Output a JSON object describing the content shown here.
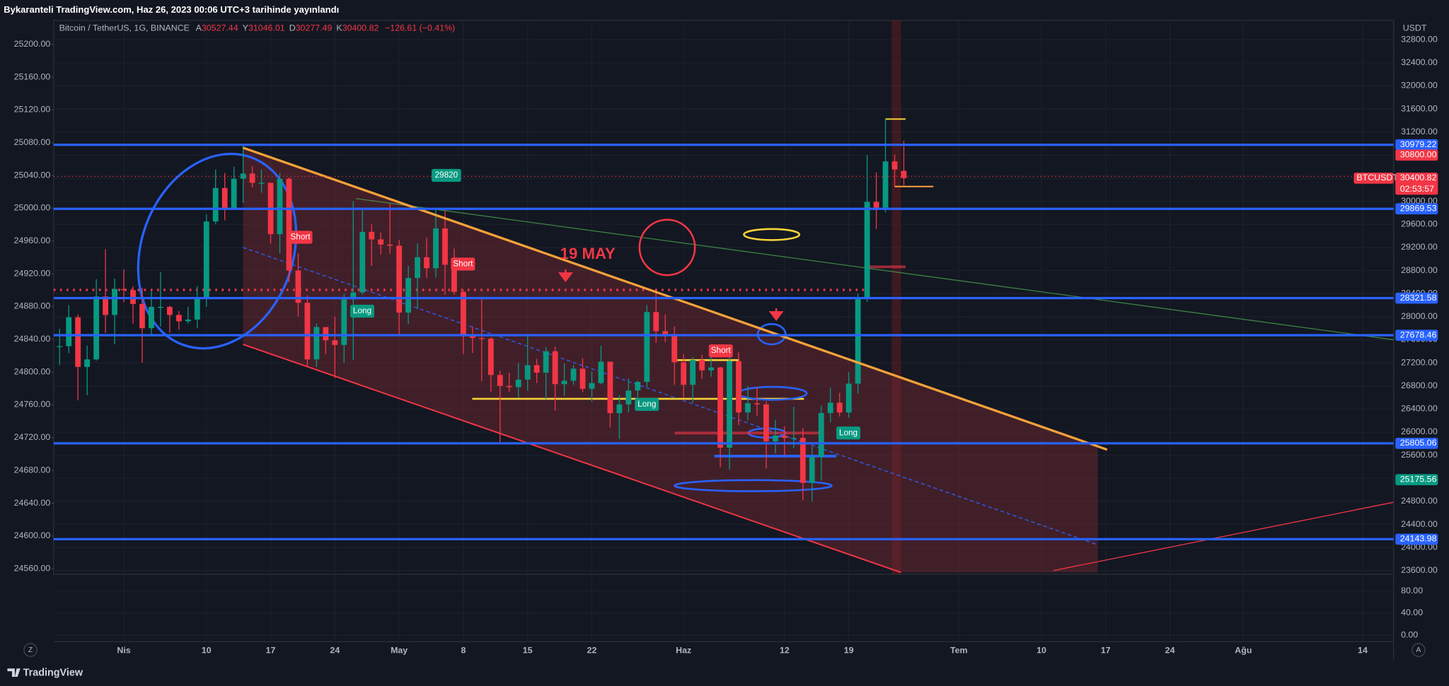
{
  "header": "Bykaranteli TradingView.com, Haz 26, 2023 00:06 UTC+3 tarihinde yayınlandı",
  "footer": "TradingView",
  "chart_data": {
    "type": "candlestick",
    "symbol": "Bitcoin / TetherUS, 1G, BINANCE",
    "ohlc_letters": [
      "A",
      "Y",
      "D",
      "K"
    ],
    "change": "−126.61 (−0.41%)",
    "currency": "USDT",
    "ticker": "BTCUSDT",
    "countdown": "02:53:57",
    "up_color": "#089981",
    "down_color": "#f23645",
    "open": [
      27480,
      27490,
      27990,
      27130,
      27260,
      28350,
      28030,
      28480,
      28460,
      28220,
      27800,
      28170,
      28170,
      28030,
      27920,
      27950,
      28330,
      29650,
      30230,
      29880,
      30390,
      30480,
      30320,
      30320,
      29430,
      30390,
      28800,
      28240,
      27260,
      27820,
      27590,
      27510,
      28300,
      28420,
      29470,
      29340,
      29250,
      29230,
      28070,
      28670,
      29030,
      28840,
      29530,
      28900,
      28430,
      27670,
      27630,
      27620,
      26990,
      26800,
      26780,
      26910,
      27160,
      27030,
      27400,
      26830,
      26890,
      27100,
      26750,
      26850,
      27220,
      26330,
      26480,
      26720,
      26870,
      28080,
      27750,
      27700,
      27210,
      26820,
      27250,
      27070,
      27120,
      25730,
      27230,
      26340,
      26500,
      26480,
      25840,
      25940,
      25900,
      25900,
      25120,
      25570,
      26330,
      26510,
      26340,
      26840,
      28310,
      29990,
      29890,
      30690,
      30527.44
    ],
    "high": [
      27790,
      28200,
      28040,
      27500,
      28650,
      29170,
      28660,
      28820,
      28530,
      28500,
      28440,
      28770,
      28190,
      28100,
      28170,
      28530,
      29770,
      30550,
      30490,
      30600,
      31000,
      30610,
      30550,
      30320,
      30490,
      30410,
      29100,
      28370,
      27880,
      27820,
      28000,
      28400,
      30000,
      29890,
      29600,
      29460,
      29960,
      29330,
      28880,
      29270,
      29370,
      29850,
      29830,
      29180,
      28460,
      27830,
      28320,
      27640,
      27060,
      27030,
      27200,
      27660,
      27270,
      27470,
      27480,
      27190,
      27160,
      27280,
      27050,
      27500,
      27220,
      26640,
      26930,
      26890,
      28200,
      28450,
      28040,
      27830,
      27350,
      27300,
      27340,
      27450,
      27130,
      27350,
      27380,
      26800,
      26780,
      26530,
      26210,
      26100,
      26440,
      26070,
      25750,
      26460,
      26770,
      26680,
      27040,
      28400,
      30800,
      30500,
      31430,
      30810,
      31046.01
    ],
    "low": [
      27160,
      27370,
      26550,
      26640,
      27240,
      27720,
      27520,
      28250,
      27880,
      27200,
      27680,
      27830,
      27720,
      27770,
      27880,
      27800,
      28170,
      29600,
      29670,
      29870,
      29970,
      30240,
      30150,
      29270,
      29100,
      28600,
      28000,
      27140,
      27130,
      27350,
      26940,
      27200,
      27250,
      28380,
      28880,
      29080,
      29090,
      27680,
      27870,
      28130,
      28670,
      28680,
      28380,
      28380,
      27350,
      27370,
      26880,
      26700,
      25810,
      26700,
      26600,
      26720,
      26850,
      26570,
      26370,
      26630,
      26820,
      26690,
      26530,
      26830,
      26080,
      25880,
      26340,
      26560,
      26780,
      27550,
      27560,
      26820,
      26600,
      26510,
      26920,
      26960,
      25390,
      25350,
      26120,
      26200,
      26280,
      25370,
      25630,
      25600,
      25720,
      24820,
      24800,
      25160,
      26170,
      26270,
      26250,
      26670,
      28260,
      29520,
      29810,
      30250,
      30277.49
    ],
    "close": [
      27490,
      27990,
      27130,
      27260,
      28350,
      28030,
      28480,
      28460,
      28220,
      27800,
      28170,
      28170,
      28030,
      27920,
      27950,
      28330,
      29650,
      30230,
      29880,
      30390,
      30480,
      30320,
      30320,
      29430,
      30390,
      28800,
      28240,
      27260,
      27820,
      27590,
      27510,
      28300,
      28420,
      29470,
      29340,
      29250,
      29230,
      28070,
      28670,
      29030,
      28840,
      29530,
      28900,
      28430,
      27670,
      27630,
      27620,
      26990,
      26800,
      26780,
      26910,
      27160,
      27030,
      27400,
      26830,
      26890,
      27100,
      26750,
      26850,
      27220,
      26330,
      26480,
      26720,
      26870,
      28080,
      27750,
      27700,
      27210,
      26820,
      27250,
      27070,
      27120,
      25730,
      27230,
      26340,
      26500,
      26480,
      25840,
      25940,
      25900,
      25900,
      25120,
      25570,
      26330,
      26510,
      26340,
      26840,
      28310,
      29990,
      29890,
      30690,
      30550,
      30400.82
    ],
    "xticks": [
      {
        "value": 7,
        "label": "Nis"
      },
      {
        "value": 16,
        "label": "10"
      },
      {
        "value": 23,
        "label": "17"
      },
      {
        "value": 30,
        "label": "24"
      },
      {
        "value": 37,
        "label": "May"
      },
      {
        "value": 44,
        "label": "8"
      },
      {
        "value": 51,
        "label": "15"
      },
      {
        "value": 58,
        "label": "22"
      },
      {
        "value": 68,
        "label": "Haz"
      },
      {
        "value": 79,
        "label": "12"
      },
      {
        "value": 86,
        "label": "19"
      },
      {
        "value": 98,
        "label": "Tem"
      },
      {
        "value": 107,
        "label": "10"
      },
      {
        "value": 114,
        "label": "17"
      },
      {
        "value": 121,
        "label": "24"
      },
      {
        "value": 129,
        "label": "Ağu"
      },
      {
        "value": 142,
        "label": "14"
      }
    ],
    "ylim": [
      23600,
      32800
    ],
    "yticks": [
      {
        "value": 32800,
        "label": "32800.00"
      },
      {
        "value": 32400,
        "label": "32400.00"
      },
      {
        "value": 32000,
        "label": "32000.00"
      },
      {
        "value": 31600,
        "label": "31600.00"
      },
      {
        "value": 31200,
        "label": "31200.00"
      },
      {
        "value": 30800,
        "label": "30800.00"
      },
      {
        "value": 30400,
        "label": "30400.00"
      },
      {
        "value": 30000,
        "label": "30000.00"
      },
      {
        "value": 29600,
        "label": "29600.00"
      },
      {
        "value": 29200,
        "label": "29200.00"
      },
      {
        "value": 28800,
        "label": "28800.00"
      },
      {
        "value": 28400,
        "label": "28400.00"
      },
      {
        "value": 28000,
        "label": "28000.00"
      },
      {
        "value": 27600,
        "label": "27600.00"
      },
      {
        "value": 27200,
        "label": "27200.00"
      },
      {
        "value": 26800,
        "label": "26800.00"
      },
      {
        "value": 26400,
        "label": "26400.00"
      },
      {
        "value": 26000,
        "label": "26000.00"
      },
      {
        "value": 25600,
        "label": "25600.00"
      },
      {
        "value": 25200,
        "label": "25200.00"
      },
      {
        "value": 24800,
        "label": "24800.00"
      },
      {
        "value": 24400,
        "label": "24400.00"
      },
      {
        "value": 24000,
        "label": "24000.00"
      },
      {
        "value": 23600,
        "label": "23600.00"
      }
    ],
    "y2lim": [
      24560,
      25200
    ],
    "y2ticks": [
      {
        "value": 25200,
        "label": "25200.00"
      },
      {
        "value": 25160,
        "label": "25160.00"
      },
      {
        "value": 25120,
        "label": "25120.00"
      },
      {
        "value": 25080,
        "label": "25080.00"
      },
      {
        "value": 25040,
        "label": "25040.00"
      },
      {
        "value": 25000,
        "label": "25000.00"
      },
      {
        "value": 24960,
        "label": "24960.00"
      },
      {
        "value": 24920,
        "label": "24920.00"
      },
      {
        "value": 24880,
        "label": "24880.00"
      },
      {
        "value": 24840,
        "label": "24840.00"
      },
      {
        "value": 24800,
        "label": "24800.00"
      },
      {
        "value": 24760,
        "label": "24760.00"
      },
      {
        "value": 24720,
        "label": "24720.00"
      },
      {
        "value": 24680,
        "label": "24680.00"
      },
      {
        "value": 24640,
        "label": "24640.00"
      },
      {
        "value": 24600,
        "label": "24600.00"
      },
      {
        "value": 24560,
        "label": "24560.00"
      }
    ],
    "lower_ticks": [
      {
        "value": 80,
        "label": "80.00"
      },
      {
        "value": 40,
        "label": "40.00"
      },
      {
        "value": 0,
        "label": "0.00"
      }
    ],
    "price_labels": [
      {
        "value": 30979.22,
        "color": "#2962ff",
        "line": true
      },
      {
        "value": 30800,
        "label": "30800.00",
        "color": "#f23645",
        "line": false
      },
      {
        "value": 29869.53,
        "color": "#2962ff",
        "line": true
      },
      {
        "value": 28321.58,
        "color": "#2962ff",
        "line": true
      },
      {
        "value": 27678.46,
        "color": "#2962ff",
        "line": true
      },
      {
        "value": 25805.06,
        "color": "#2962ff",
        "line": true
      },
      {
        "value": 25175.56,
        "color": "#089981",
        "line": false
      },
      {
        "value": 24143.98,
        "color": "#2962ff",
        "line": true
      }
    ],
    "annotations": [
      {
        "text": "Short",
        "color": "#f23645"
      },
      {
        "text": "Short",
        "color": "#f23645"
      },
      {
        "text": "Short",
        "color": "#f23645"
      },
      {
        "text": "Long",
        "color": "#089981"
      },
      {
        "text": "Long",
        "color": "#089981"
      },
      {
        "text": "Long",
        "color": "#089981"
      },
      {
        "text": "29820",
        "color": "#089981"
      },
      {
        "text": "19 MAY",
        "color": "#f23645"
      }
    ],
    "axis_buttons": [
      "Z",
      "A"
    ]
  }
}
